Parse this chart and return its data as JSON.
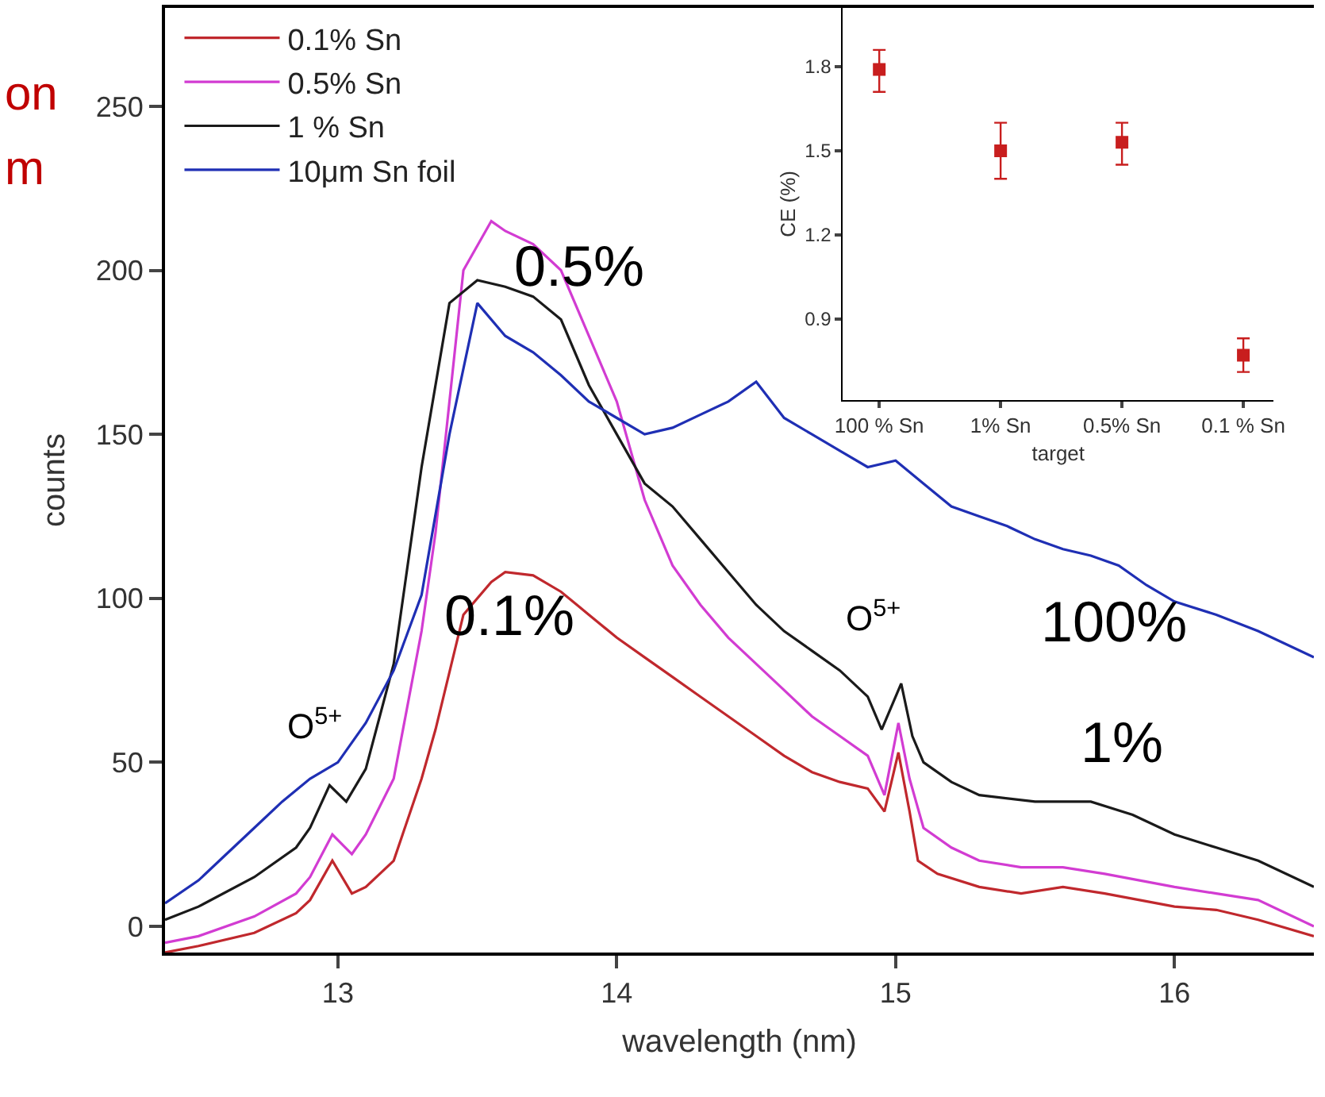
{
  "chart_data": [
    {
      "type": "line",
      "xlabel": "wavelength (nm)",
      "ylabel": "counts",
      "xlim": [
        12.38,
        16.5
      ],
      "ylim": [
        -8,
        280
      ],
      "xticks": [
        13,
        14,
        15,
        16
      ],
      "yticks": [
        0,
        50,
        100,
        150,
        200,
        250
      ],
      "legend": "top left",
      "line_style": "solid",
      "annotations": [
        "on",
        "m",
        "0.5%",
        "0.1%",
        "100%",
        "1%",
        "O$^{5+}$",
        "O$^{5+}$"
      ],
      "series": [
        {
          "name": "0.1% Sn",
          "color": "#c0282d",
          "x": [
            12.38,
            12.5,
            12.7,
            12.85,
            12.9,
            12.98,
            13.05,
            13.1,
            13.2,
            13.3,
            13.35,
            13.45,
            13.55,
            13.6,
            13.7,
            13.8,
            13.9,
            14.0,
            14.1,
            14.2,
            14.3,
            14.4,
            14.5,
            14.6,
            14.7,
            14.8,
            14.9,
            14.96,
            15.01,
            15.05,
            15.08,
            15.15,
            15.3,
            15.45,
            15.6,
            15.75,
            16.0,
            16.15,
            16.3,
            16.5
          ],
          "values": [
            -8,
            -6,
            -2,
            4,
            8,
            20,
            10,
            12,
            20,
            45,
            60,
            95,
            105,
            108,
            107,
            102,
            95,
            88,
            82,
            76,
            70,
            64,
            58,
            52,
            47,
            44,
            42,
            35,
            53,
            35,
            20,
            16,
            12,
            10,
            12,
            10,
            6,
            5,
            2,
            -3
          ]
        },
        {
          "name": "0.5% Sn",
          "color": "#d23cd2",
          "x": [
            12.38,
            12.5,
            12.7,
            12.85,
            12.9,
            12.98,
            13.05,
            13.1,
            13.2,
            13.3,
            13.35,
            13.45,
            13.55,
            13.6,
            13.7,
            13.8,
            13.9,
            14.0,
            14.1,
            14.2,
            14.3,
            14.4,
            14.5,
            14.6,
            14.7,
            14.8,
            14.9,
            14.96,
            15.01,
            15.05,
            15.1,
            15.2,
            15.3,
            15.45,
            15.6,
            15.75,
            16.0,
            16.15,
            16.3,
            16.5
          ],
          "values": [
            -5,
            -3,
            3,
            10,
            15,
            28,
            22,
            28,
            45,
            90,
            120,
            200,
            215,
            212,
            208,
            200,
            180,
            160,
            130,
            110,
            98,
            88,
            80,
            72,
            64,
            58,
            52,
            40,
            62,
            45,
            30,
            24,
            20,
            18,
            18,
            16,
            12,
            10,
            8,
            0
          ]
        },
        {
          "name": "1 % Sn",
          "color": "#1a1a1a",
          "x": [
            12.38,
            12.5,
            12.7,
            12.85,
            12.9,
            12.97,
            13.03,
            13.1,
            13.2,
            13.3,
            13.4,
            13.5,
            13.6,
            13.7,
            13.8,
            13.9,
            14.0,
            14.1,
            14.2,
            14.3,
            14.4,
            14.5,
            14.6,
            14.7,
            14.8,
            14.9,
            14.95,
            15.02,
            15.06,
            15.1,
            15.2,
            15.3,
            15.5,
            15.7,
            15.85,
            16.0,
            16.15,
            16.3,
            16.5
          ],
          "values": [
            2,
            6,
            15,
            24,
            30,
            43,
            38,
            48,
            80,
            140,
            190,
            197,
            195,
            192,
            185,
            165,
            150,
            135,
            128,
            118,
            108,
            98,
            90,
            84,
            78,
            70,
            60,
            74,
            58,
            50,
            44,
            40,
            38,
            38,
            34,
            28,
            24,
            20,
            12
          ]
        },
        {
          "name": "10μm Sn foil",
          "color": "#1f2fb4",
          "x": [
            12.38,
            12.5,
            12.6,
            12.7,
            12.8,
            12.9,
            13.0,
            13.1,
            13.2,
            13.3,
            13.4,
            13.5,
            13.6,
            13.7,
            13.8,
            13.9,
            14.0,
            14.1,
            14.2,
            14.3,
            14.4,
            14.5,
            14.6,
            14.7,
            14.8,
            14.9,
            15.0,
            15.1,
            15.2,
            15.3,
            15.4,
            15.5,
            15.6,
            15.7,
            15.8,
            15.9,
            16.0,
            16.15,
            16.3,
            16.5
          ],
          "values": [
            7,
            14,
            22,
            30,
            38,
            45,
            50,
            62,
            78,
            101,
            150,
            190,
            180,
            175,
            168,
            160,
            155,
            150,
            152,
            156,
            160,
            166,
            155,
            150,
            145,
            140,
            142,
            135,
            128,
            125,
            122,
            118,
            115,
            113,
            110,
            104,
            99,
            95,
            90,
            82
          ]
        }
      ]
    },
    {
      "type": "scatter",
      "xlabel": "target",
      "ylabel": "CE (%)",
      "categories": [
        "100 % Sn",
        "1% Sn",
        "0.5% Sn",
        "0.1 % Sn"
      ],
      "values": [
        1.79,
        1.5,
        1.53,
        0.77
      ],
      "errors": [
        [
          1.71,
          1.86
        ],
        [
          1.4,
          1.6
        ],
        [
          1.45,
          1.6
        ],
        [
          0.71,
          0.83
        ]
      ],
      "color": "#c81e1e",
      "marker": "square",
      "ylim": [
        0.61,
        2.01
      ],
      "yticks": [
        0.9,
        1.2,
        1.5,
        1.8
      ]
    }
  ]
}
